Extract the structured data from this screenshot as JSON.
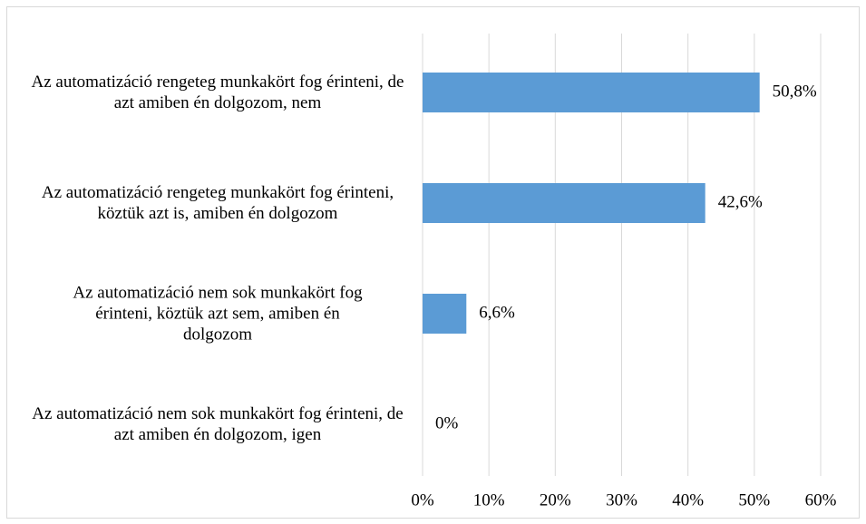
{
  "chart_data": {
    "type": "bar",
    "orientation": "horizontal",
    "categories": [
      "Az automatizáció rengeteg munkakört fog érinteni, de azt amiben én dolgozom, nem",
      "Az automatizáció rengeteg munkakört fog érinteni, köztük azt is, amiben én dolgozom",
      "Az automatizáció nem sok munkakört fog érinteni, köztük azt sem, amiben én dolgozom",
      "Az automatizáció nem sok munkakört fog érinteni, de azt amiben én dolgozom, igen"
    ],
    "values": [
      50.8,
      42.6,
      6.6,
      0
    ],
    "value_labels": [
      "50,8%",
      "42,6%",
      "6,6%",
      "0%"
    ],
    "color": "#5b9bd5",
    "xlim": [
      0,
      60
    ],
    "xticks": [
      {
        "value": 0,
        "label": "0%"
      },
      {
        "value": 10,
        "label": "10%"
      },
      {
        "value": 20,
        "label": "20%"
      },
      {
        "value": 30,
        "label": "30%"
      },
      {
        "value": 40,
        "label": "40%"
      },
      {
        "value": 50,
        "label": "50%"
      },
      {
        "value": 60,
        "label": "60%"
      }
    ],
    "grid": true
  }
}
